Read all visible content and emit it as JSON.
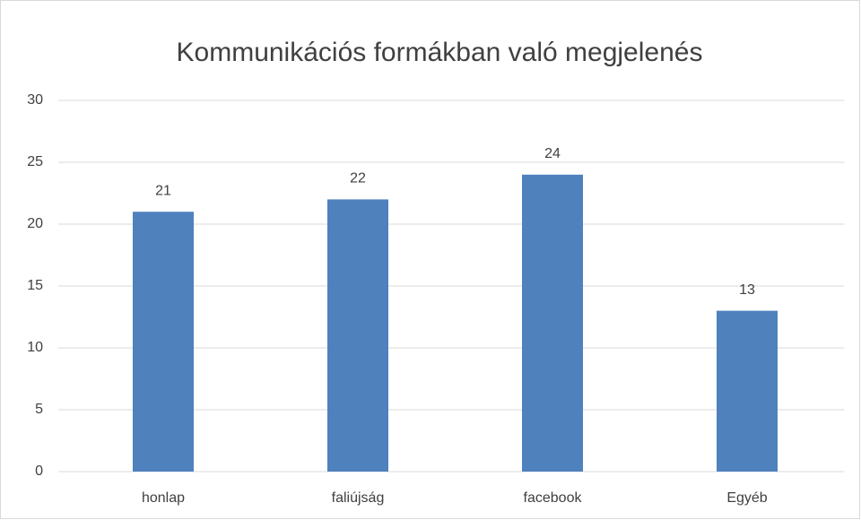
{
  "chart_data": {
    "type": "bar",
    "title": "Kommunikációs formákban való megjelenés",
    "categories": [
      "honlap",
      "faliújság",
      "facebook",
      "Egyéb"
    ],
    "values": [
      21,
      22,
      24,
      13
    ],
    "color": "#4f81bd",
    "ylim": [
      0,
      30
    ],
    "yticks": [
      0,
      5,
      10,
      15,
      20,
      25,
      30
    ],
    "grid": true,
    "data_labels": true
  }
}
